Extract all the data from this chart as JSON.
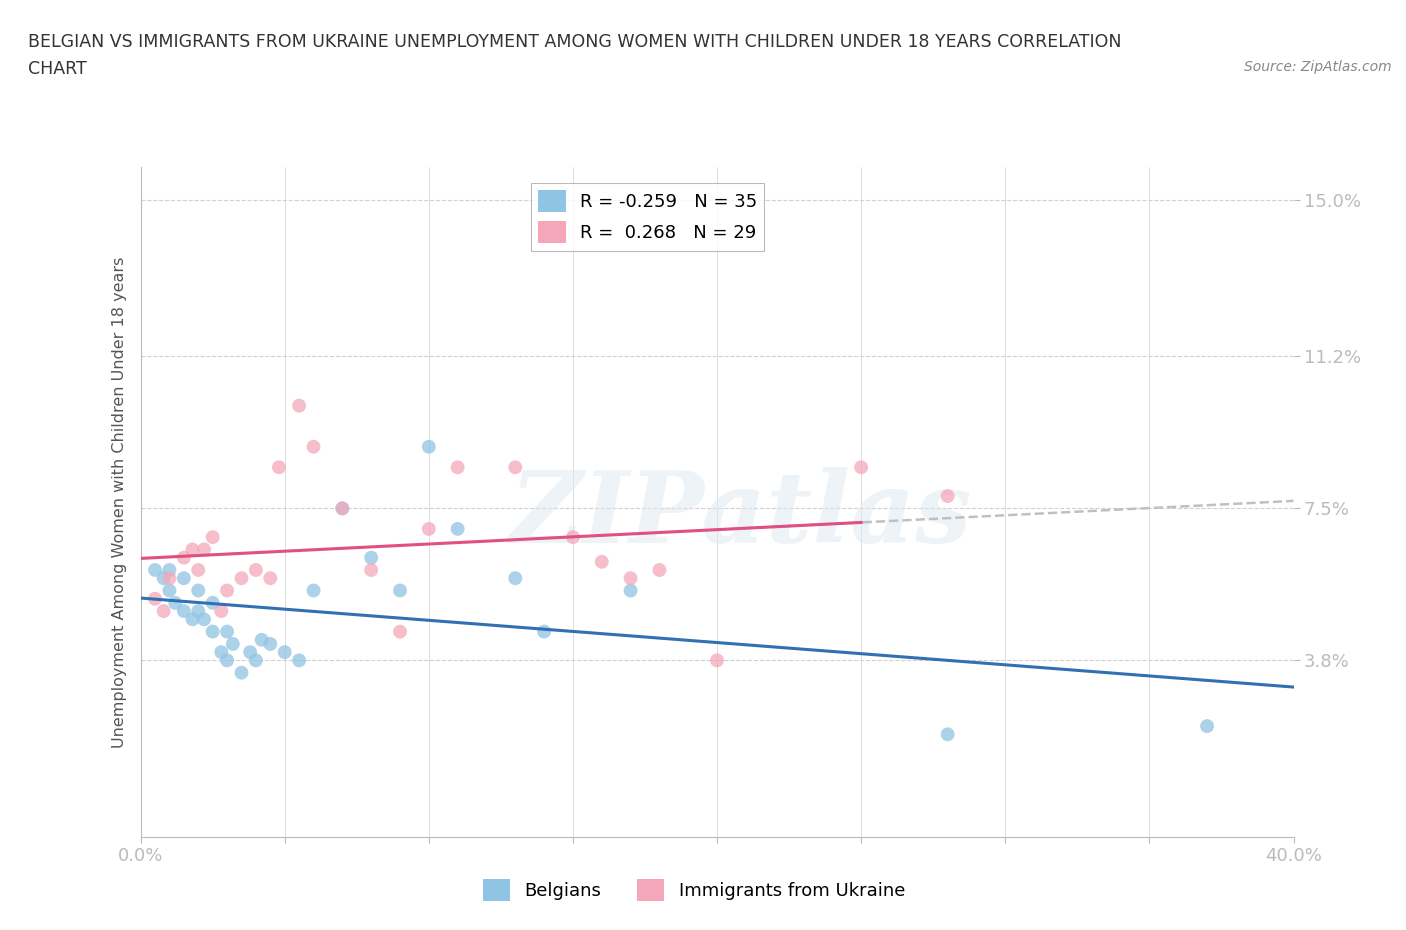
{
  "title_line1": "BELGIAN VS IMMIGRANTS FROM UKRAINE UNEMPLOYMENT AMONG WOMEN WITH CHILDREN UNDER 18 YEARS CORRELATION",
  "title_line2": "CHART",
  "source_text": "Source: ZipAtlas.com",
  "ylabel": "Unemployment Among Women with Children Under 18 years",
  "xlim": [
    0.0,
    0.4
  ],
  "ylim": [
    -0.005,
    0.158
  ],
  "yticks": [
    0.038,
    0.075,
    0.112,
    0.15
  ],
  "ytick_labels": [
    "3.8%",
    "7.5%",
    "11.2%",
    "15.0%"
  ],
  "xticks": [
    0.0,
    0.05,
    0.1,
    0.15,
    0.2,
    0.25,
    0.3,
    0.35,
    0.4
  ],
  "xtick_labels": [
    "0.0%",
    "",
    "",
    "",
    "",
    "",
    "",
    "",
    "40.0%"
  ],
  "legend_r1": "R = -0.259   N = 35",
  "legend_r2": "R =  0.268   N = 29",
  "color_belgian": "#90c4e4",
  "color_ukraine": "#f4a7b9",
  "color_trend_belgian": "#3070b3",
  "color_trend_ukraine": "#e05080",
  "color_trend_gray": "#c0c0c0",
  "watermark": "ZIPatlas",
  "belgians_x": [
    0.005,
    0.008,
    0.01,
    0.01,
    0.012,
    0.015,
    0.015,
    0.018,
    0.02,
    0.02,
    0.022,
    0.025,
    0.025,
    0.028,
    0.03,
    0.03,
    0.032,
    0.035,
    0.038,
    0.04,
    0.042,
    0.045,
    0.05,
    0.055,
    0.06,
    0.07,
    0.08,
    0.09,
    0.1,
    0.11,
    0.13,
    0.14,
    0.17,
    0.28,
    0.37
  ],
  "belgians_y": [
    0.06,
    0.058,
    0.055,
    0.06,
    0.052,
    0.05,
    0.058,
    0.048,
    0.05,
    0.055,
    0.048,
    0.045,
    0.052,
    0.04,
    0.038,
    0.045,
    0.042,
    0.035,
    0.04,
    0.038,
    0.043,
    0.042,
    0.04,
    0.038,
    0.055,
    0.075,
    0.063,
    0.055,
    0.09,
    0.07,
    0.058,
    0.045,
    0.055,
    0.02,
    0.022
  ],
  "ukraine_x": [
    0.005,
    0.008,
    0.01,
    0.015,
    0.018,
    0.02,
    0.022,
    0.025,
    0.028,
    0.03,
    0.035,
    0.04,
    0.045,
    0.048,
    0.055,
    0.06,
    0.07,
    0.08,
    0.09,
    0.1,
    0.11,
    0.13,
    0.15,
    0.16,
    0.17,
    0.18,
    0.2,
    0.25,
    0.28
  ],
  "ukraine_y": [
    0.053,
    0.05,
    0.058,
    0.063,
    0.065,
    0.06,
    0.065,
    0.068,
    0.05,
    0.055,
    0.058,
    0.06,
    0.058,
    0.085,
    0.1,
    0.09,
    0.075,
    0.06,
    0.045,
    0.07,
    0.085,
    0.085,
    0.068,
    0.062,
    0.058,
    0.06,
    0.038,
    0.085,
    0.078
  ],
  "background_color": "#ffffff",
  "grid_color": "#d0d0d0",
  "title_color": "#333333",
  "axis_label_color": "#555555",
  "tick_label_color": "#5b9bd5"
}
